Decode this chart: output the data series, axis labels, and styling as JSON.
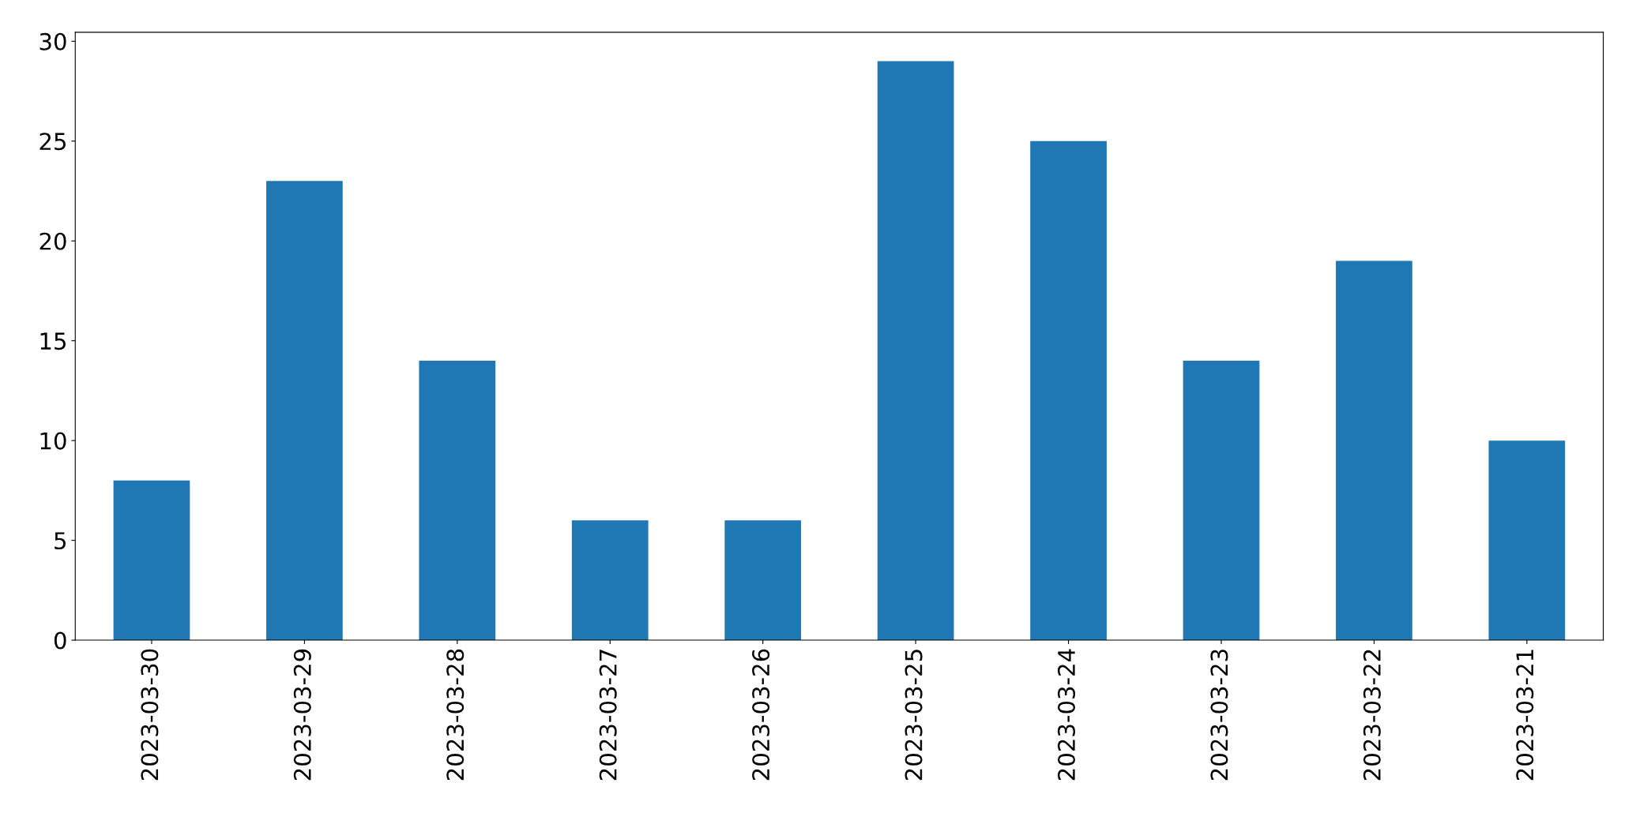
{
  "chart_data": {
    "type": "bar",
    "categories": [
      "2023-03-30",
      "2023-03-29",
      "2023-03-28",
      "2023-03-27",
      "2023-03-26",
      "2023-03-25",
      "2023-03-24",
      "2023-03-23",
      "2023-03-22",
      "2023-03-21"
    ],
    "values": [
      8,
      23,
      14,
      6,
      6,
      29,
      25,
      14,
      19,
      10
    ],
    "color": "#1f77b4",
    "ylim": [
      0,
      30.45
    ],
    "yticks": [
      0,
      5,
      10,
      15,
      20,
      25,
      30
    ],
    "grid": false,
    "legend": false
  }
}
